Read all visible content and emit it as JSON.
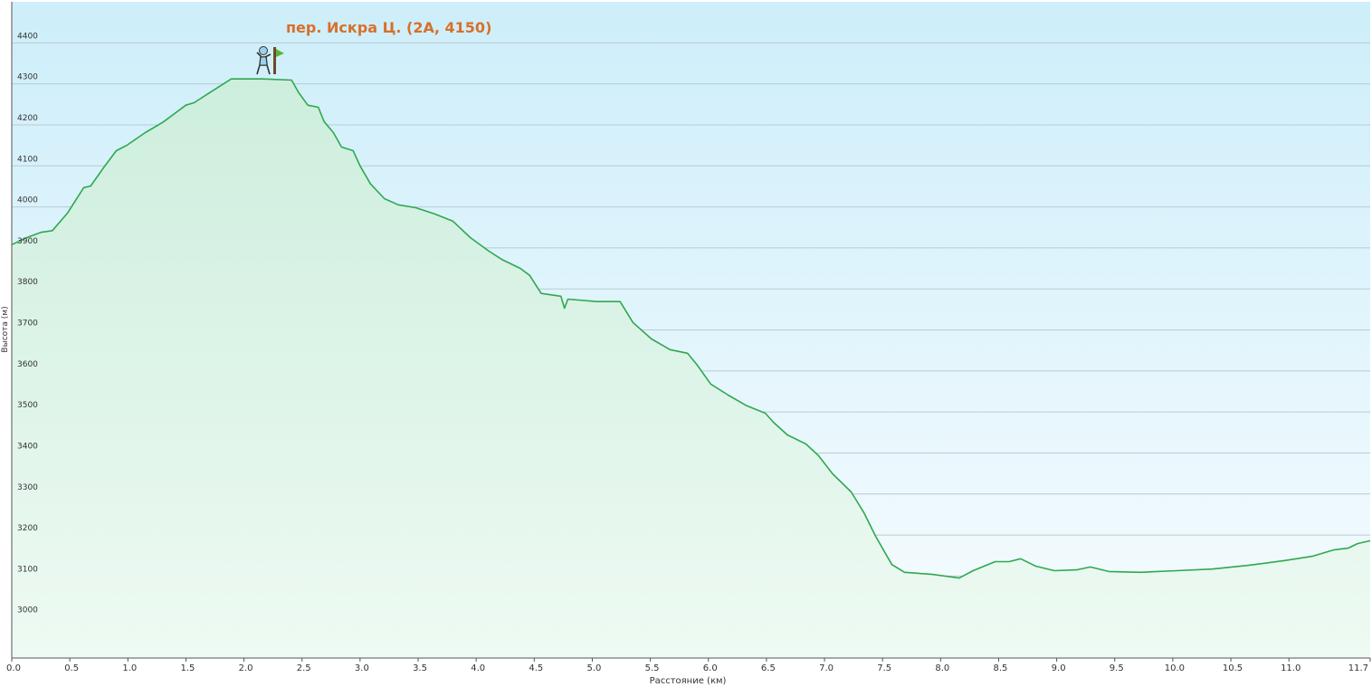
{
  "chart_data": {
    "type": "area",
    "annotation": "пер. Искра Ц. (2А, 4150)",
    "x_label": "Расстояние  (км)",
    "y_label": "Высота (м)",
    "xlim": [
      0,
      11.7
    ],
    "ylim": [
      2900,
      4500
    ],
    "xticks": [
      {
        "value": 0,
        "label": "0.0"
      },
      0.5,
      {
        "value": 1,
        "label": "1.0"
      },
      1.5,
      {
        "value": 2,
        "label": "2.0"
      },
      2.5,
      {
        "value": 3,
        "label": "3.0"
      },
      3.5,
      {
        "value": 4,
        "label": "4.0"
      },
      4.5,
      {
        "value": 5,
        "label": "5.0"
      },
      5.5,
      {
        "value": 6,
        "label": "6.0"
      },
      6.5,
      {
        "value": 7,
        "label": "7.0"
      },
      7.5,
      {
        "value": 8,
        "label": "8.0"
      },
      8.5,
      {
        "value": 9,
        "label": "9.0"
      },
      9.5,
      {
        "value": 10,
        "label": "10.0"
      },
      10.5,
      {
        "value": 11,
        "label": "11.0"
      },
      11.7
    ],
    "yticks": [
      3000,
      3100,
      3200,
      3300,
      3400,
      3500,
      3600,
      3700,
      3800,
      3900,
      4000,
      4100,
      4200,
      4300,
      4400
    ],
    "grid": true,
    "series": [
      {
        "color": "#2fa84f",
        "x": [
          0,
          0.13,
          0.25,
          0.35,
          0.48,
          0.62,
          0.68,
          0.79,
          0.9,
          0.99,
          1.15,
          1.3,
          1.5,
          1.57,
          1.73,
          1.89,
          2.16,
          2.41,
          2.47,
          2.55,
          2.64,
          2.69,
          2.77,
          2.84,
          2.94,
          3.0,
          3.09,
          3.21,
          3.33,
          3.48,
          3.64,
          3.8,
          3.95,
          4.11,
          4.22,
          4.38,
          4.46,
          4.56,
          4.73,
          4.76,
          4.79,
          5.04,
          5.24,
          5.35,
          5.51,
          5.67,
          5.82,
          5.9,
          6.02,
          6.17,
          6.33,
          6.49,
          6.56,
          6.68,
          6.84,
          6.95,
          7.07,
          7.23,
          7.34,
          7.44,
          7.58,
          7.69,
          7.93,
          8.16,
          8.28,
          8.47,
          8.59,
          8.69,
          8.82,
          8.98,
          9.17,
          9.29,
          9.45,
          9.72,
          10.03,
          10.34,
          10.65,
          10.97,
          11.2,
          11.39,
          11.51,
          11.59,
          11.7
        ],
        "values": [
          3908,
          3925,
          3938,
          3942,
          3985,
          4047,
          4051,
          4095,
          4137,
          4150,
          4181,
          4206,
          4248,
          4254,
          4283,
          4312,
          4312,
          4309,
          4279,
          4248,
          4243,
          4208,
          4181,
          4146,
          4137,
          4100,
          4056,
          4020,
          4005,
          3998,
          3983,
          3965,
          3925,
          3892,
          3872,
          3850,
          3833,
          3789,
          3782,
          3753,
          3775,
          3769,
          3769,
          3718,
          3678,
          3652,
          3643,
          3616,
          3568,
          3541,
          3515,
          3497,
          3475,
          3444,
          3422,
          3393,
          3349,
          3305,
          3254,
          3197,
          3128,
          3109,
          3104,
          3095,
          3113,
          3135,
          3135,
          3142,
          3124,
          3113,
          3115,
          3122,
          3111,
          3109,
          3113,
          3117,
          3126,
          3138,
          3148,
          3164,
          3168,
          3179,
          3186
        ]
      }
    ]
  }
}
